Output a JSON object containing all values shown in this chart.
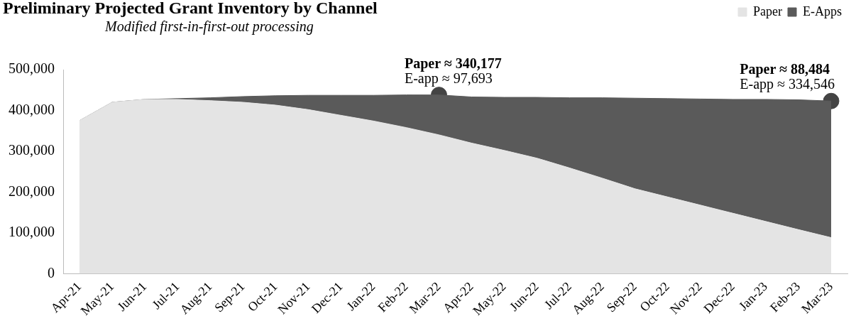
{
  "chart_data": {
    "type": "area",
    "title": "Preliminary Projected Grant Inventory by Channel",
    "subtitle": "Modified first-in-first-out processing",
    "stacked": true,
    "legend": "top right",
    "grid": false,
    "categories": [
      "Apr-21",
      "May-21",
      "Jun-21",
      "Jul-21",
      "Aug-21",
      "Sep-21",
      "Oct-21",
      "Nov-21",
      "Dec-21",
      "Jan-22",
      "Feb-22",
      "Mar-22",
      "Apr-22",
      "May-22",
      "Jun-22",
      "Jul-22",
      "Aug-22",
      "Sep-22",
      "Oct-22",
      "Nov-22",
      "Dec-22",
      "Jan-23",
      "Feb-23",
      "Mar-23"
    ],
    "ylim": [
      0,
      500000
    ],
    "yticks": [
      0,
      {
        "value": 100000,
        "label": "100,000"
      },
      {
        "value": 200000,
        "label": "200,000"
      },
      {
        "value": 300000,
        "label": "300,000"
      },
      {
        "value": 400000,
        "label": "400,000"
      },
      {
        "value": 500000,
        "label": "500,000"
      }
    ],
    "series": [
      {
        "name": "Paper",
        "color": "#e4e4e4",
        "values": [
          375000,
          420000,
          427000,
          427000,
          424000,
          420000,
          413000,
          402000,
          388000,
          374000,
          358000,
          340177,
          320000,
          302000,
          283000,
          259000,
          234000,
          208000,
          188000,
          168000,
          148000,
          128000,
          108000,
          88484
        ]
      },
      {
        "name": "E-Apps",
        "color": "#5a5a5a",
        "values": [
          0,
          0,
          0,
          2000,
          7000,
          14000,
          23000,
          35000,
          49000,
          63000,
          80000,
          97693,
          113000,
          130000,
          149000,
          172000,
          197000,
          222000,
          241000,
          260000,
          279000,
          299000,
          318000,
          334546
        ]
      },
      {
        "type": "scatter",
        "color": "#444444",
        "x": [
          "Mar-22",
          "Mar-23"
        ],
        "values": [
          438000,
          423000
        ]
      }
    ],
    "annotations": [
      {
        "text": "Paper ≈ 340,177",
        "x": "Mar-22",
        "y": 438000
      },
      {
        "text": "E-app ≈ 97,693",
        "x": "Mar-22",
        "y": 438000
      },
      {
        "text": "Paper ≈ 88,484",
        "x": "Mar-23",
        "y": 423000
      },
      {
        "text": "E-app ≈ 334,546",
        "x": "Mar-23",
        "y": 423000
      }
    ]
  }
}
